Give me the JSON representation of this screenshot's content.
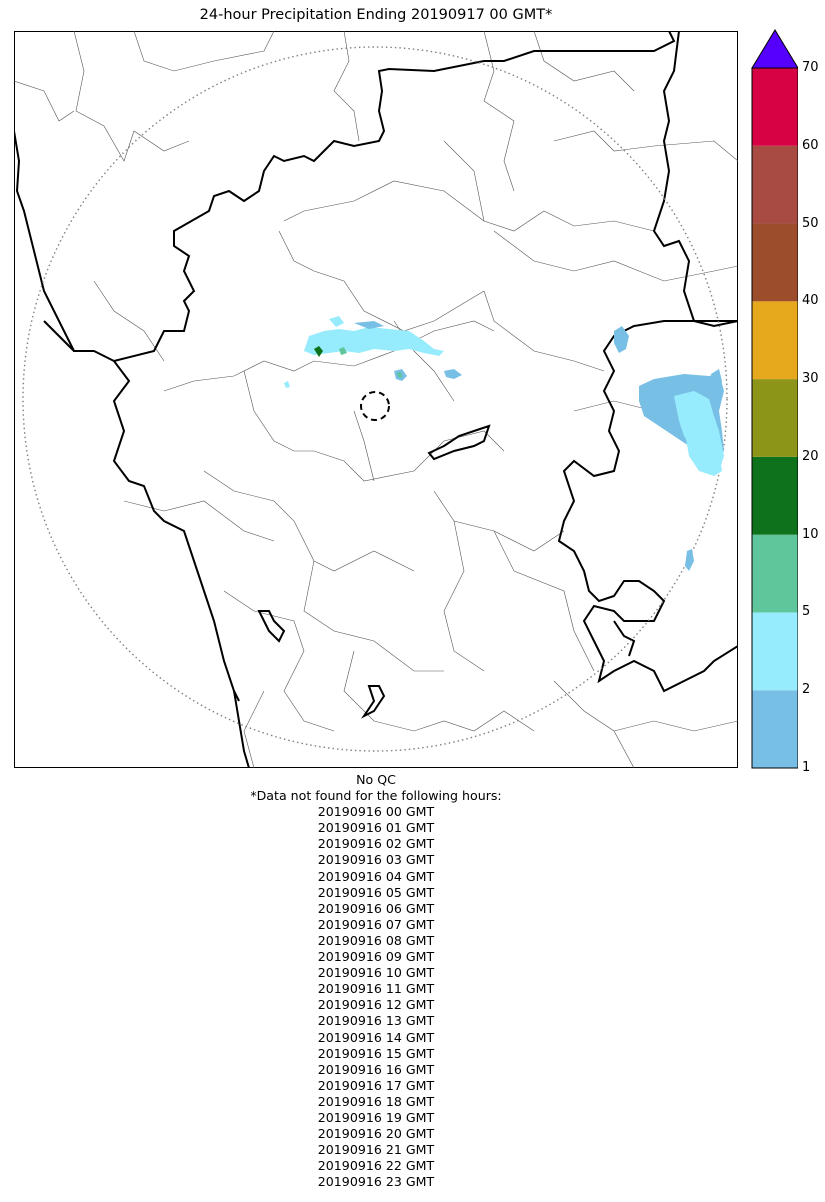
{
  "title": "24-hour Precipitation Ending 20190917 00 GMT*",
  "colorbar": {
    "ticks": [
      "70",
      "60",
      "50",
      "40",
      "30",
      "20",
      "10",
      "5",
      "2",
      "1"
    ],
    "bins": [
      {
        "from": "1",
        "to": "2",
        "color": "#78bfe5"
      },
      {
        "from": "2",
        "to": "5",
        "color": "#96ecfc"
      },
      {
        "from": "5",
        "to": "10",
        "color": "#5fc59a"
      },
      {
        "from": "10",
        "to": "20",
        "color": "#0e721c"
      },
      {
        "from": "20",
        "to": "30",
        "color": "#8c9518"
      },
      {
        "from": "30",
        "to": "40",
        "color": "#e6a81c"
      },
      {
        "from": "40",
        "to": "50",
        "color": "#9c4e2c"
      },
      {
        "from": "50",
        "to": "60",
        "color": "#a74b43"
      },
      {
        "from": "60",
        "to": "70",
        "color": "#d60244"
      }
    ],
    "over_color": "#5500ff"
  },
  "map": {
    "range_ring": "dotted",
    "radar_site_marker": "dashed-circle"
  },
  "footer": {
    "qc": "No QC",
    "note": "*Data not found for the following hours:",
    "hours": [
      "20190916 00 GMT",
      "20190916 01 GMT",
      "20190916 02 GMT",
      "20190916 03 GMT",
      "20190916 04 GMT",
      "20190916 05 GMT",
      "20190916 06 GMT",
      "20190916 07 GMT",
      "20190916 08 GMT",
      "20190916 09 GMT",
      "20190916 10 GMT",
      "20190916 11 GMT",
      "20190916 12 GMT",
      "20190916 13 GMT",
      "20190916 14 GMT",
      "20190916 15 GMT",
      "20190916 16 GMT",
      "20190916 17 GMT",
      "20190916 18 GMT",
      "20190916 19 GMT",
      "20190916 20 GMT",
      "20190916 21 GMT",
      "20190916 22 GMT",
      "20190916 23 GMT"
    ]
  }
}
